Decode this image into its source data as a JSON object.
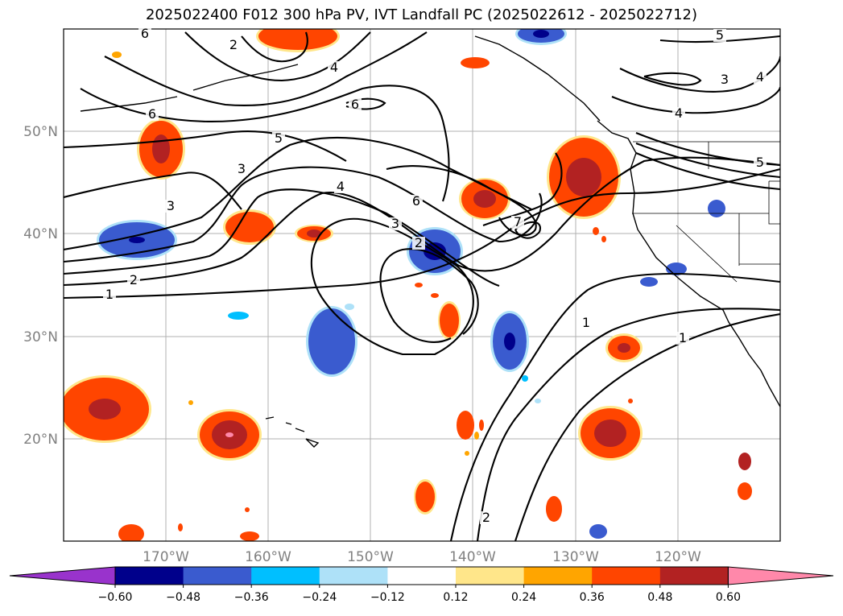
{
  "title": "2025022400 F012 300 hPa PV, IVT Landfall PC (2025022612 - 2025022712)",
  "lat_labels": [
    "50°N",
    "40°N",
    "30°N",
    "20°N"
  ],
  "lon_labels": [
    "170°W",
    "160°W",
    "150°W",
    "140°W",
    "130°W",
    "120°W"
  ],
  "colorbar": {
    "ticks": [
      "−0.60",
      "−0.48",
      "−0.36",
      "−0.24",
      "−0.12",
      "0.12",
      "0.24",
      "0.36",
      "0.48",
      "0.60"
    ],
    "colors": [
      "#9933cc",
      "#00008b",
      "#3a5bcf",
      "#00bfff",
      "#aee1f8",
      "#ffffff",
      "#ffe68a",
      "#ffa500",
      "#ff4500",
      "#b22222",
      "#ff88aa"
    ]
  },
  "pv_contour_labels": [
    "6",
    "3",
    "2",
    "4",
    "6",
    "6",
    "5",
    "3",
    "5",
    "4",
    "6",
    "3",
    "2",
    "1",
    "7",
    "2",
    "3",
    "4",
    "4",
    "5",
    "1",
    "1",
    "2"
  ]
}
